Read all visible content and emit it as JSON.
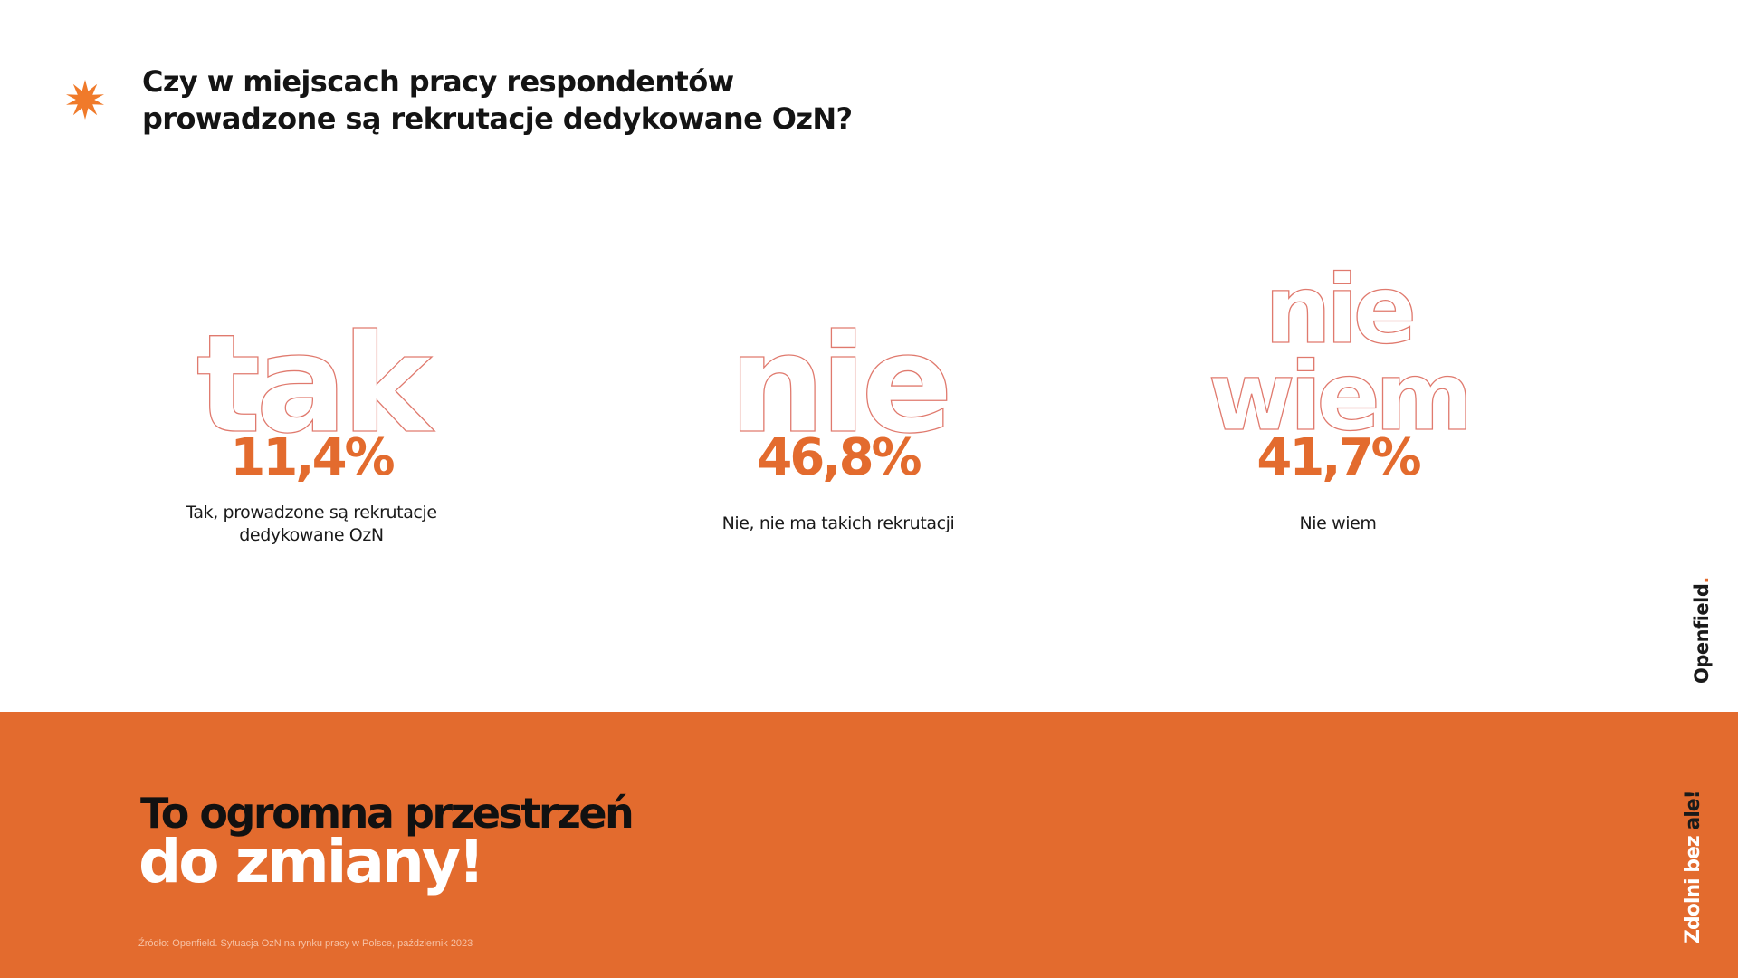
{
  "title": {
    "line1": "Czy w miejscach pracy respondentów",
    "line2": "prowadzone są rekrutacje dedykowane OzN?"
  },
  "icons": {
    "title_marker": "star-burst-icon"
  },
  "colors": {
    "accent": "#e36b2e",
    "outline": "#e07a6e",
    "text": "#1a1a1a",
    "band": "#e36b2e"
  },
  "chart_data": {
    "type": "table",
    "categories": [
      "tak",
      "nie",
      "nie wiem"
    ],
    "values": [
      11.4,
      46.8,
      41.7
    ],
    "unit": "%",
    "value_labels": [
      "11,4%",
      "46,8%",
      "41,7%"
    ],
    "captions": [
      "Tak, prowadzone są rekrutacje dedykowane OzN",
      "Nie, nie ma takich rekrutacji",
      "Nie wiem"
    ]
  },
  "stats": [
    {
      "word_lines": [
        "tak"
      ],
      "value": "11,4%",
      "caption_lines": [
        "Tak, prowadzone są rekrutacje",
        "dedykowane OzN"
      ]
    },
    {
      "word_lines": [
        "nie"
      ],
      "value": "46,8%",
      "caption_lines": [
        "Nie, nie ma takich rekrutacji"
      ]
    },
    {
      "word_lines": [
        "nie",
        "wiem"
      ],
      "value": "41,7%",
      "caption_lines": [
        "Nie wiem"
      ]
    }
  ],
  "footer": {
    "headline_line1": "To ogromna przestrzeń",
    "headline_line2": "do zmiany!",
    "source": "Źródło: Openfield. Sytuacja OzN na rynku pracy w Polsce, październik 2023"
  },
  "brands": {
    "openfield_main": "Openfield",
    "openfield_dot": ".",
    "zdolni_main": "Zdolni bez ",
    "zdolni_accent": "ale!"
  }
}
